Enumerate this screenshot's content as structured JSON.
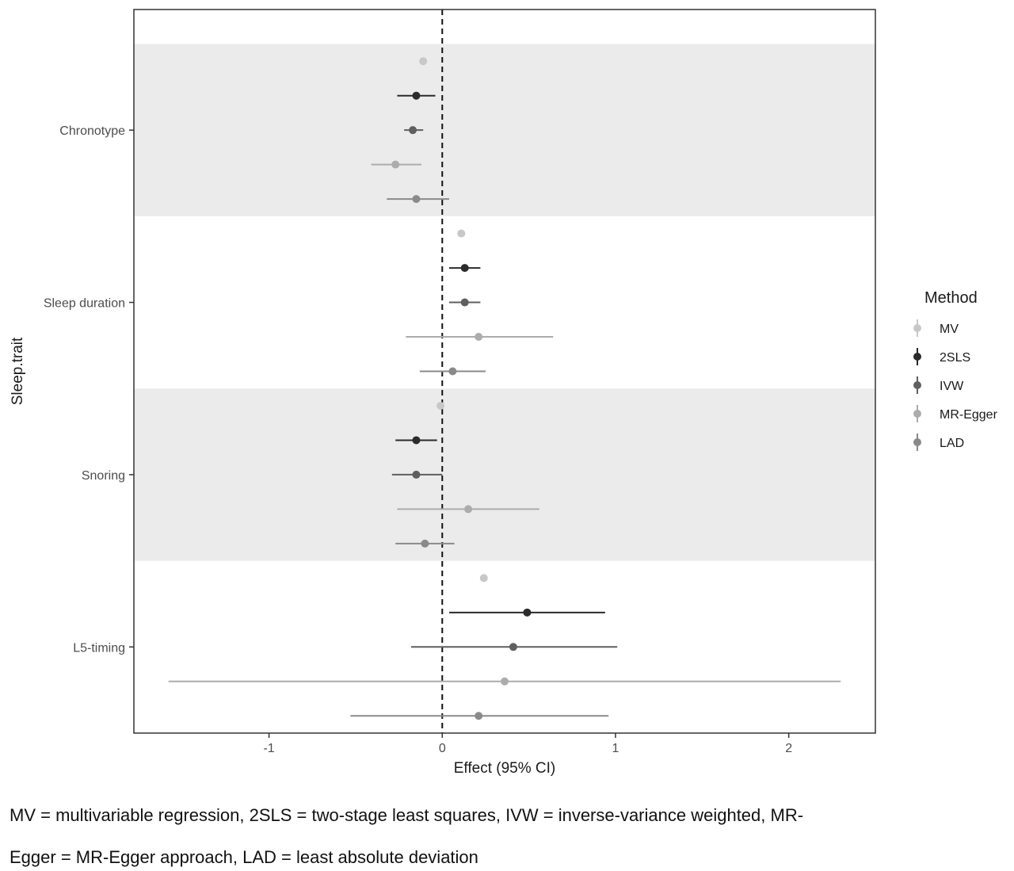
{
  "chart_data": {
    "type": "forest",
    "xlabel": "Effect (95% CI)",
    "ylabel": "Sleep.trait",
    "xlim": [
      -1.78,
      2.5
    ],
    "x_ticks": [
      -1,
      0,
      1,
      2
    ],
    "x_tick_labels": [
      "-1",
      "0",
      "1",
      "2"
    ],
    "reference_line": 0,
    "categories": [
      "Chronotype",
      "Sleep duration",
      "Snoring",
      "L5-timing"
    ],
    "legend": {
      "title": "Method",
      "placement": "right",
      "entries": [
        {
          "name": "MV",
          "color": "#c8c8c8"
        },
        {
          "name": "2SLS",
          "color": "#2b2b2b"
        },
        {
          "name": "IVW",
          "color": "#5f5f5f"
        },
        {
          "name": "MR-Egger",
          "color": "#acacac"
        },
        {
          "name": "LAD",
          "color": "#8a8a8a"
        }
      ]
    },
    "series": [
      {
        "category": "Chronotype",
        "method": "MV",
        "estimate": -0.11,
        "lower": -0.11,
        "upper": -0.11
      },
      {
        "category": "Chronotype",
        "method": "2SLS",
        "estimate": -0.15,
        "lower": -0.26,
        "upper": -0.04
      },
      {
        "category": "Chronotype",
        "method": "IVW",
        "estimate": -0.17,
        "lower": -0.22,
        "upper": -0.11
      },
      {
        "category": "Chronotype",
        "method": "MR-Egger",
        "estimate": -0.27,
        "lower": -0.41,
        "upper": -0.12
      },
      {
        "category": "Chronotype",
        "method": "LAD",
        "estimate": -0.15,
        "lower": -0.32,
        "upper": 0.04
      },
      {
        "category": "Sleep duration",
        "method": "MV",
        "estimate": 0.11,
        "lower": 0.11,
        "upper": 0.11
      },
      {
        "category": "Sleep duration",
        "method": "2SLS",
        "estimate": 0.13,
        "lower": 0.04,
        "upper": 0.22
      },
      {
        "category": "Sleep duration",
        "method": "IVW",
        "estimate": 0.13,
        "lower": 0.04,
        "upper": 0.22
      },
      {
        "category": "Sleep duration",
        "method": "MR-Egger",
        "estimate": 0.21,
        "lower": -0.21,
        "upper": 0.64
      },
      {
        "category": "Sleep duration",
        "method": "LAD",
        "estimate": 0.06,
        "lower": -0.13,
        "upper": 0.25
      },
      {
        "category": "Snoring",
        "method": "MV",
        "estimate": -0.01,
        "lower": -0.01,
        "upper": -0.01
      },
      {
        "category": "Snoring",
        "method": "2SLS",
        "estimate": -0.15,
        "lower": -0.27,
        "upper": -0.03
      },
      {
        "category": "Snoring",
        "method": "IVW",
        "estimate": -0.15,
        "lower": -0.29,
        "upper": 0.0
      },
      {
        "category": "Snoring",
        "method": "MR-Egger",
        "estimate": 0.15,
        "lower": -0.26,
        "upper": 0.56
      },
      {
        "category": "Snoring",
        "method": "LAD",
        "estimate": -0.1,
        "lower": -0.27,
        "upper": 0.07
      },
      {
        "category": "L5-timing",
        "method": "MV",
        "estimate": 0.24,
        "lower": 0.24,
        "upper": 0.24
      },
      {
        "category": "L5-timing",
        "method": "2SLS",
        "estimate": 0.49,
        "lower": 0.04,
        "upper": 0.94
      },
      {
        "category": "L5-timing",
        "method": "IVW",
        "estimate": 0.41,
        "lower": -0.18,
        "upper": 1.01
      },
      {
        "category": "L5-timing",
        "method": "MR-Egger",
        "estimate": 0.36,
        "lower": -1.58,
        "upper": 2.3
      },
      {
        "category": "L5-timing",
        "method": "LAD",
        "estimate": 0.21,
        "lower": -0.53,
        "upper": 0.96
      }
    ]
  },
  "caption": {
    "line1": "MV = multivariable regression, 2SLS = two-stage least squares, IVW = inverse-variance weighted, MR-",
    "line2": "Egger = MR-Egger approach, LAD = least absolute deviation"
  }
}
